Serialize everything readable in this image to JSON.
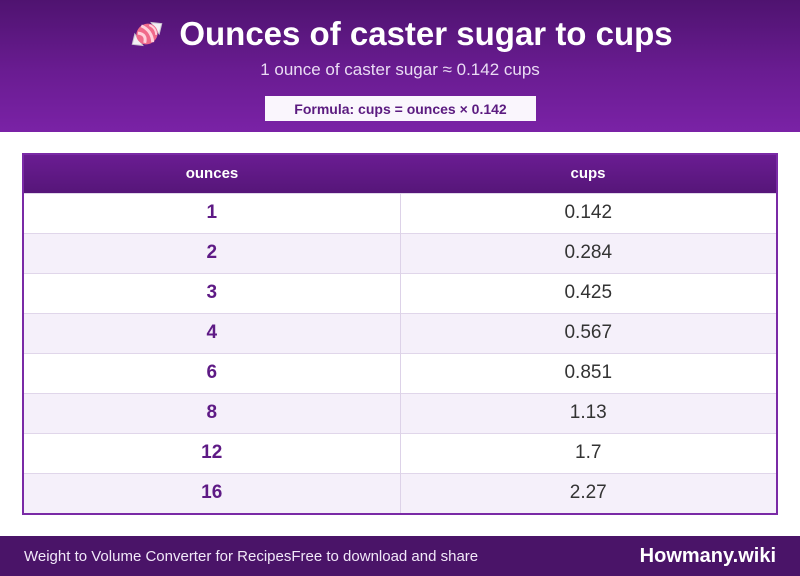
{
  "header": {
    "icon": "candy-icon",
    "title": "Ounces of caster sugar to cups",
    "subtitle": "1 ounce of caster sugar ≈ 0.142 cups",
    "formula": "Formula: cups = ounces × 0.142"
  },
  "table": {
    "columns": [
      "ounces",
      "cups"
    ],
    "rows": [
      [
        "1",
        "0.142"
      ],
      [
        "2",
        "0.284"
      ],
      [
        "3",
        "0.425"
      ],
      [
        "4",
        "0.567"
      ],
      [
        "6",
        "0.851"
      ],
      [
        "8",
        "1.13"
      ],
      [
        "12",
        "1.7"
      ],
      [
        "16",
        "2.27"
      ]
    ]
  },
  "footer": {
    "left_a": "Weight to Volume Converter for Recipes",
    "left_b": "Free to download and share",
    "brand": "Howmany.wiki"
  },
  "colors": {
    "header_purple": "#6a1c92",
    "footer_purple": "#4a1468",
    "accent_text": "#5e1a85"
  }
}
